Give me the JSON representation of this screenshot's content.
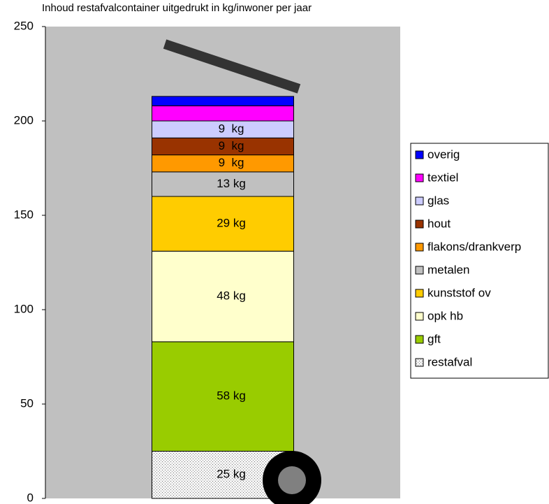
{
  "chart_data": {
    "type": "stacked-bar",
    "title": "Inhoud restafvalcontainer uitgedrukt in kg/inwoner per jaar",
    "categories": [
      null
    ],
    "ylim": [
      0,
      250
    ],
    "yticks": [
      0,
      50,
      100,
      150,
      200,
      250
    ],
    "legend": "right",
    "series": [
      {
        "name": "restafval",
        "color": "#e8e8e8",
        "pattern": "dotted",
        "values": [
          25
        ],
        "value_labels": [
          "25 kg"
        ]
      },
      {
        "name": "gft",
        "color": "#99cc00",
        "values": [
          58
        ],
        "value_labels": [
          "58 kg"
        ]
      },
      {
        "name": "opk hb",
        "color": "#ffffcc",
        "values": [
          48
        ],
        "value_labels": [
          "48 kg"
        ]
      },
      {
        "name": "kunststof ov",
        "color": "#ffcc00",
        "values": [
          29
        ],
        "value_labels": [
          "29 kg"
        ]
      },
      {
        "name": "metalen",
        "color": "#c0c0c0",
        "values": [
          13
        ],
        "value_labels": [
          "13 kg"
        ]
      },
      {
        "name": "flakons/drankverp",
        "color": "#ff9900",
        "values": [
          9
        ],
        "value_labels": [
          "9  kg"
        ]
      },
      {
        "name": "hout",
        "color": "#993300",
        "values": [
          9
        ],
        "value_labels": [
          "9  kg"
        ]
      },
      {
        "name": "glas",
        "color": "#ccccff",
        "values": [
          9
        ],
        "value_labels": [
          "9  kg"
        ]
      },
      {
        "name": "textiel",
        "color": "#ff00ff",
        "values": [
          8
        ],
        "value_labels": [
          null
        ]
      },
      {
        "name": "overig",
        "color": "#0000ff",
        "values": [
          5
        ],
        "value_labels": [
          null
        ]
      }
    ]
  }
}
